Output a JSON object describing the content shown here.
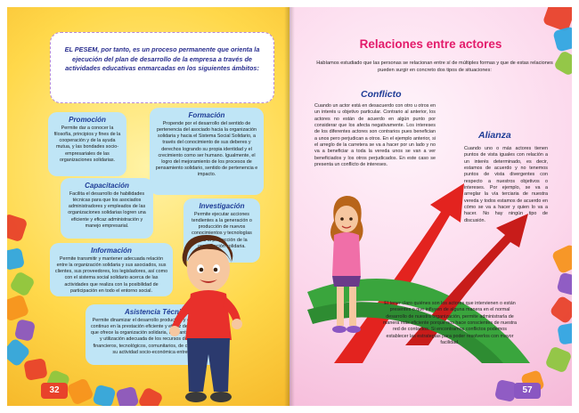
{
  "left_page": {
    "intro": "EL PESEM, por tanto, es un proceso permanente que orienta la ejecución del plan de desarrollo de la empresa a través de actividades educativas enmarcadas en los siguientes ámbitos:",
    "cards": {
      "promocion": {
        "title": "Promoción",
        "text": "Permite dar a conocer la filosofía, principios y fines de la cooperación y de la ayuda mutua, y las bondades socio-empresariales de las organizaciones solidarias."
      },
      "formacion": {
        "title": "Formación",
        "text": "Propende por el desarrollo del sentido de pertenencia del asociado hacia la organización solidaria y hacia el Sistema Social Solidario, a través del conocimiento de sus deberes y derechos logrando su propia identidad y el crecimiento como ser humano. Igualmente, el logro del mejoramiento de los procesos de pensamiento solidario, sentido de pertenencia e impacto."
      },
      "capacitacion": {
        "title": "Capacitación",
        "text": "Facilita el desarrollo de habilidades técnicas para que los asociados administradores y empleados de las organizaciones solidarias logren una eficiente y eficaz administración y manejo empresarial."
      },
      "investigacion": {
        "title": "Investigación",
        "text": "Permite ejecutar acciones tendientes a la generación o producción de nuevos conocimientos y tecnologías para la proyección de la organización solidaria."
      },
      "informacion": {
        "title": "Información",
        "text": "Permite transmitir y mantener adecuada relación entre la organización solidaria y sus asociados, sus clientes, sus proveedores, los legisladores, así como con el sistema social solidario acerca de las actividades que realiza con la posibilidad de participación en todo el entorno social."
      },
      "asistencia": {
        "title": "Asistencia Técnica",
        "text": "Permite dinamizar el desarrollo productivo y el mejoramiento continuo en la prestación eficiente y eficaz del (los) servicio(s) que ofrece la organización solidaria, mediante la identificación y utilización adecuada de los recursos de producción, financieros, tecnológicos, comunitarios, de conformidad con su actividad socio-económica entre otros."
      }
    },
    "page_number": "32"
  },
  "right_page": {
    "title": "Relaciones entre actores",
    "intro": "Habíamos estudiado que las personas se relacionan entre sí de múltiples formas y que de estas relaciones pueden surgir en concreto dos tipos de situaciones:",
    "conflicto": {
      "title": "Conflicto",
      "text": "Cuando un actor está en desacuerdo con otro u otros en un interés u objetivo particular. Contrario al anterior, los actores no están de acuerdo en algún punto por considerar que los afecta negativamente. Los intereses de los diferentes actores son contrarios pues benefician a unos pero perjudican a otros. En el ejemplo anterior, si el arreglo de la carretera se va a hacer por un lado y no va a beneficiar a toda la vereda unos se van a ver beneficiados y los otros perjudicados. En este caso se presenta un conflicto de intereses."
    },
    "alianza": {
      "title": "Alianza",
      "text": "Cuando uno o más actores tienen puntos de vista iguales con relación a un interés determinado, es decir, estamos de acuerdo y no tenemos puntos de vista divergentes con respecto a nuestros objetivos o intereses. Por ejemplo, se va a arreglar la vía terciaria de nuestra vereda y todos estamos de acuerdo en cómo se va a hacer y quien lo va a hacer. No hay ningún tipo de discusión."
    },
    "closing": "El tener claro quiénes son los actores que intervienen o están presentes o que influyen de alguna manera en el normal desarrollo de nuestra organización, permite administrarla de manera más eficiente porque nos hace conscientes de nuestra red de contactos. Si encontramos conflictos podemos establecer las estrategias para poder resolverlos con mayor facilidad.",
    "page_number": "57"
  },
  "colors": {
    "title_pink": "#e31b6a",
    "subtitle_blue": "#1e3c96",
    "card_blue": "#bfe5f6",
    "left_bg": "#ffd84a",
    "right_bg": "#fcd8ec"
  }
}
